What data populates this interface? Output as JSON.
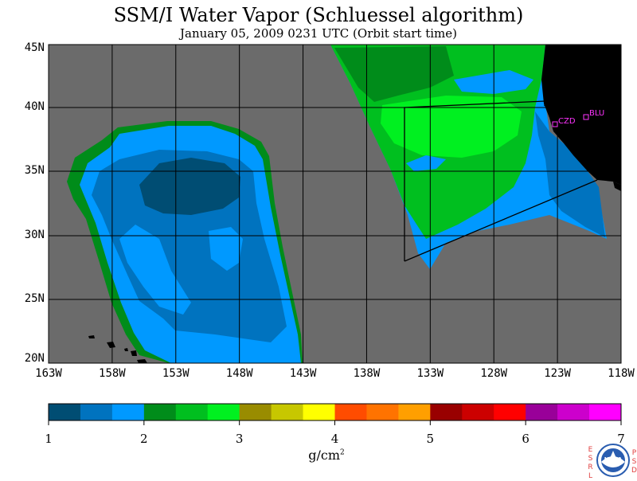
{
  "title": "SSM/I Water Vapor (Schluessel algorithm)",
  "subtitle": "January 05, 2009  0231 UTC  (Orbit start time)",
  "lat_labels": [
    "45N",
    "40N",
    "35N",
    "30N",
    "25N",
    "20N"
  ],
  "lon_labels": [
    "163W",
    "158W",
    "153W",
    "148W",
    "143W",
    "138W",
    "133W",
    "128W",
    "123W",
    "118W"
  ],
  "colorbar": {
    "colors": [
      "#004d73",
      "#0073bf",
      "#0099ff",
      "#008c1a",
      "#00bf1f",
      "#00f020",
      "#998c00",
      "#c7c700",
      "#ffff00",
      "#ff4c00",
      "#ff7300",
      "#ff9f00",
      "#990000",
      "#cc0000",
      "#ff0000",
      "#990099",
      "#cc00cc",
      "#ff00ff"
    ],
    "tick_labels": [
      "1",
      "2",
      "3",
      "4",
      "5",
      "6",
      "7"
    ],
    "units": "g/cm",
    "units_sup": "2"
  },
  "stations": [
    {
      "name": "CZD"
    },
    {
      "name": "BLU"
    }
  ],
  "logo": {
    "left_letters": "ESRL",
    "right_letters": "PSD",
    "center_text": "NOAA"
  },
  "map_colors": {
    "ocean_nodata": "#6b6b6b",
    "land": "#000000",
    "grid": "#000000",
    "station": "#ff33ff"
  }
}
